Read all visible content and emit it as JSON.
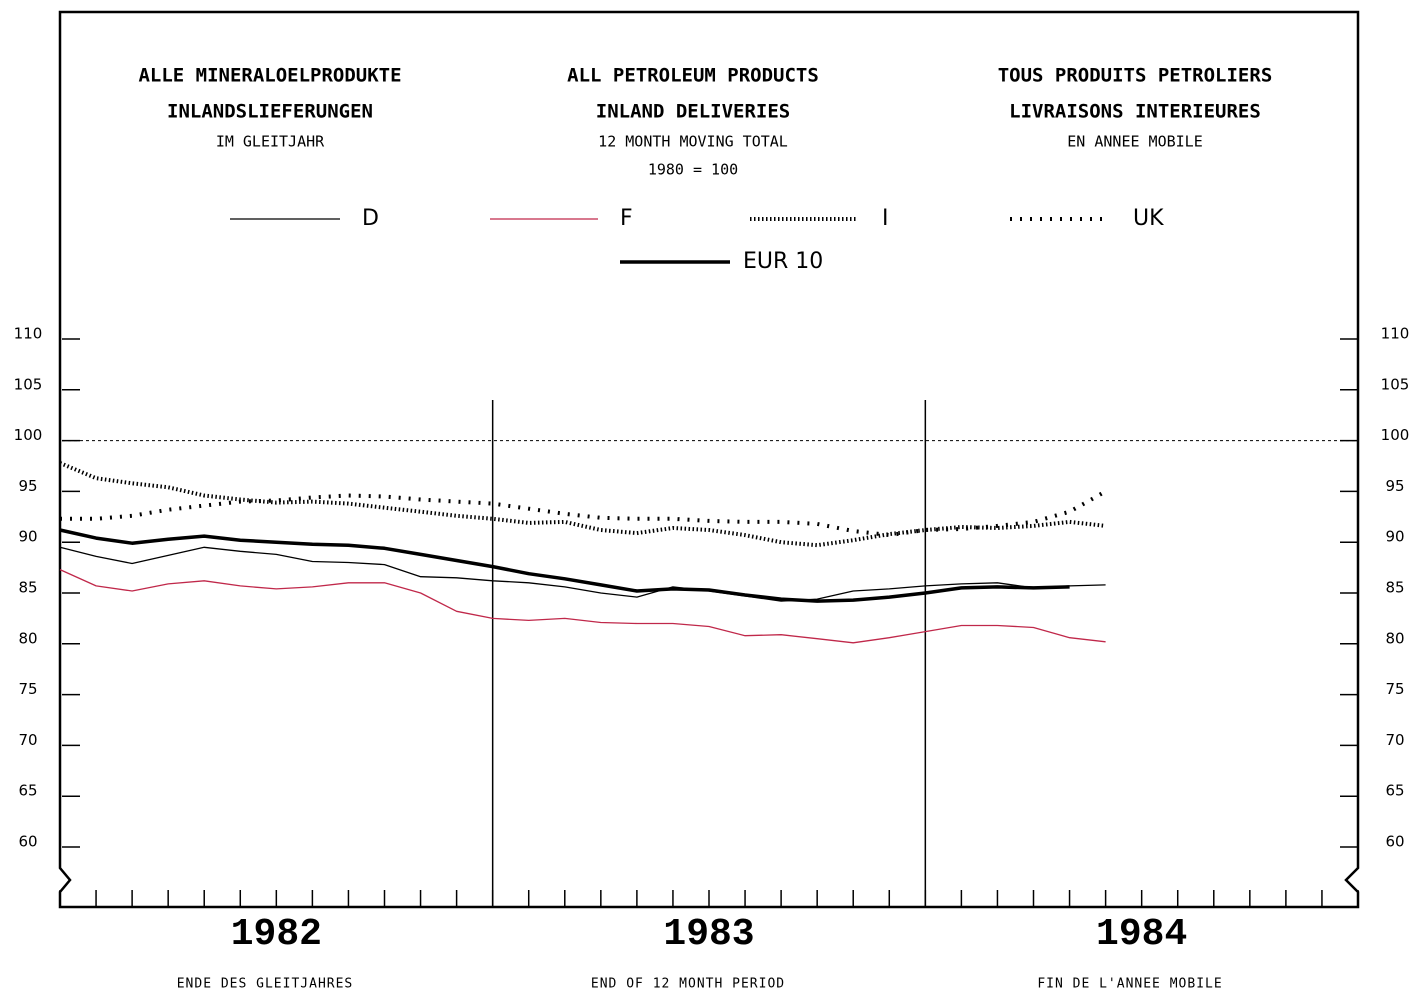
{
  "chart_data": {
    "type": "line",
    "titles": [
      [
        "ALLE MINERALOELPRODUKTE",
        "INLANDSLIEFERUNGEN",
        "IM GLEITJAHR"
      ],
      [
        "ALL PETROLEUM PRODUCTS",
        "INLAND DELIVERIES",
        "12 MONTH MOVING TOTAL",
        "1980 = 100"
      ],
      [
        "TOUS PRODUITS PETROLIERS",
        "LIVRAISONS INTERIEURES",
        "EN ANNEE MOBILE"
      ]
    ],
    "x_labels": [
      "ENDE DES GLEITJAHRES",
      "END OF 12 MONTH PERIOD",
      "FIN DE L'ANNEE MOBILE"
    ],
    "x": [
      0,
      1,
      2,
      3,
      4,
      5,
      6,
      7,
      8,
      9,
      10,
      11,
      12,
      13,
      14,
      15,
      16,
      17,
      18,
      19,
      20,
      21,
      22,
      23,
      24,
      25,
      26,
      27,
      28,
      29
    ],
    "xlim": [
      0,
      36
    ],
    "xticks": [
      {
        "value": 6,
        "label": "1982"
      },
      {
        "value": 18,
        "label": "1983"
      },
      {
        "value": 30,
        "label": "1984"
      }
    ],
    "ylim": [
      60,
      110
    ],
    "yticks": [
      60,
      65,
      70,
      75,
      80,
      85,
      90,
      95,
      100,
      105,
      110
    ],
    "hline": 100,
    "series": [
      {
        "name": "D",
        "color": "#000000",
        "style": "thin",
        "values": [
          89.5,
          88.6,
          87.9,
          88.7,
          89.5,
          89.1,
          88.8,
          88.1,
          88.0,
          87.8,
          86.6,
          86.5,
          86.2,
          86.0,
          85.6,
          85.0,
          84.6,
          85.6,
          85.2,
          84.7,
          84.2,
          84.4,
          85.2,
          85.4,
          85.7,
          85.9,
          86.0,
          85.5,
          85.7,
          85.8
        ]
      },
      {
        "name": "F",
        "color": "#c0284a",
        "style": "thin",
        "values": [
          87.3,
          85.7,
          85.2,
          85.9,
          86.2,
          85.7,
          85.4,
          85.6,
          86.0,
          86.0,
          85.0,
          83.2,
          82.5,
          82.3,
          82.5,
          82.1,
          82.0,
          82.0,
          81.7,
          80.8,
          80.9,
          80.5,
          80.1,
          80.6,
          81.2,
          81.8,
          81.8,
          81.6,
          80.6,
          80.2
        ]
      },
      {
        "name": "I",
        "color": "#000000",
        "style": "cross-dense",
        "values": [
          97.8,
          96.3,
          95.8,
          95.4,
          94.6,
          94.2,
          93.9,
          94.0,
          93.8,
          93.4,
          93.0,
          92.6,
          92.3,
          91.9,
          92.0,
          91.2,
          90.9,
          91.4,
          91.2,
          90.7,
          90.0,
          89.7,
          90.2,
          90.8,
          91.2,
          91.5,
          91.4,
          91.6,
          92.0,
          91.6
        ]
      },
      {
        "name": "UK",
        "color": "#000000",
        "style": "cross-sparse",
        "values": [
          92.3,
          92.3,
          92.6,
          93.2,
          93.6,
          94.0,
          94.1,
          94.4,
          94.6,
          94.5,
          94.2,
          94.0,
          93.8,
          93.3,
          92.8,
          92.4,
          92.3,
          92.3,
          92.1,
          92.0,
          92.0,
          91.8,
          91.1,
          90.7,
          91.2,
          91.3,
          91.6,
          92.0,
          93.0,
          95.0
        ]
      },
      {
        "name": "EUR 10",
        "color": "#000000",
        "style": "thick",
        "values": [
          91.2,
          90.4,
          89.9,
          90.3,
          90.6,
          90.2,
          90.0,
          89.8,
          89.7,
          89.4,
          88.8,
          88.2,
          87.6,
          86.9,
          86.4,
          85.8,
          85.2,
          85.4,
          85.3,
          84.8,
          84.4,
          84.2,
          84.3,
          84.6,
          85.0,
          85.5,
          85.6,
          85.5,
          85.6,
          null
        ]
      }
    ]
  }
}
